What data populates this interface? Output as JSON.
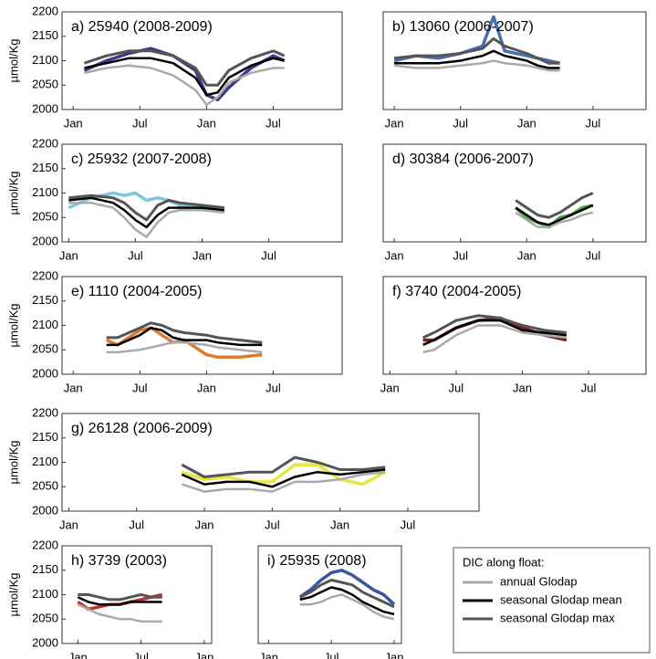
{
  "chart_data": [
    {
      "type": "line",
      "title": "a) 25940 (2008-2009)",
      "ylabel": "µmol/Kg",
      "x": [
        1,
        3,
        5,
        7,
        9,
        11,
        12,
        13,
        14,
        16,
        18,
        19
      ],
      "series": [
        {
          "color": "#3b3b8a",
          "values": [
            2080,
            2100,
            2115,
            2125,
            2110,
            2080,
            2030,
            2020,
            2045,
            2085,
            2110,
            2100
          ]
        },
        {
          "color": "#aaaaaa",
          "values": [
            2075,
            2085,
            2090,
            2085,
            2070,
            2040,
            2010,
            2025,
            2055,
            2075,
            2085,
            2085
          ]
        },
        {
          "color": "#000000",
          "values": [
            2085,
            2095,
            2105,
            2105,
            2095,
            2065,
            2030,
            2035,
            2065,
            2090,
            2105,
            2100
          ]
        },
        {
          "color": "#555555",
          "values": [
            2095,
            2110,
            2120,
            2120,
            2110,
            2085,
            2050,
            2050,
            2080,
            2105,
            2120,
            2110
          ]
        }
      ],
      "xlim": [
        -1,
        24.2
      ],
      "xticks": [
        {
          "value": 0,
          "label": "Jan"
        },
        {
          "value": 6,
          "label": "Jul"
        },
        {
          "value": 12,
          "label": "Jan"
        },
        {
          "value": 18,
          "label": "Jul"
        }
      ],
      "ylim": [
        2000,
        2200
      ],
      "yticks": [
        2000,
        2050,
        2100,
        2150,
        2200
      ]
    },
    {
      "type": "line",
      "title": "b) 13060 (2006-2007)",
      "x": [
        0,
        2,
        4,
        6,
        8,
        9,
        10,
        12,
        13,
        14,
        15
      ],
      "series": [
        {
          "color": "#4a6fb0",
          "values": [
            2100,
            2110,
            2105,
            2115,
            2130,
            2190,
            2120,
            2110,
            2105,
            2100,
            2095
          ]
        },
        {
          "color": "#aaaaaa",
          "values": [
            2090,
            2085,
            2085,
            2090,
            2095,
            2100,
            2095,
            2090,
            2085,
            2080,
            2080
          ]
        },
        {
          "color": "#000000",
          "values": [
            2095,
            2095,
            2095,
            2100,
            2110,
            2120,
            2110,
            2100,
            2090,
            2085,
            2085
          ]
        },
        {
          "color": "#555555",
          "values": [
            2105,
            2110,
            2110,
            2115,
            2125,
            2145,
            2130,
            2115,
            2105,
            2095,
            2095
          ]
        }
      ],
      "xlim": [
        -1,
        22.8
      ],
      "xticks": [
        {
          "value": 0,
          "label": "Jan"
        },
        {
          "value": 6,
          "label": "Jul"
        },
        {
          "value": 12,
          "label": "Jan"
        },
        {
          "value": 18,
          "label": "Jul"
        }
      ],
      "ylim": [
        2000,
        2200
      ]
    },
    {
      "type": "line",
      "title": "c) 25932 (2007-2008)",
      "ylabel": "µmol/Kg",
      "x": [
        0,
        2,
        4,
        5,
        6,
        7,
        8,
        9,
        10,
        12,
        14
      ],
      "series": [
        {
          "color": "#7ec8d8",
          "values": [
            2070,
            2090,
            2100,
            2095,
            2100,
            2085,
            2090,
            2085,
            2075,
            2070,
            2065
          ]
        },
        {
          "color": "#aaaaaa",
          "values": [
            2080,
            2080,
            2070,
            2050,
            2025,
            2010,
            2040,
            2060,
            2065,
            2065,
            2060
          ]
        },
        {
          "color": "#000000",
          "values": [
            2085,
            2090,
            2080,
            2065,
            2045,
            2030,
            2055,
            2070,
            2070,
            2070,
            2065
          ]
        },
        {
          "color": "#555555",
          "values": [
            2090,
            2095,
            2090,
            2080,
            2060,
            2045,
            2075,
            2085,
            2080,
            2075,
            2070
          ]
        }
      ],
      "xlim": [
        -0.6,
        24.6
      ],
      "xticks": [
        {
          "value": 0,
          "label": "Jan"
        },
        {
          "value": 6,
          "label": "Jul"
        },
        {
          "value": 12,
          "label": "Jan"
        },
        {
          "value": 18,
          "label": "Jul"
        }
      ],
      "ylim": [
        2000,
        2200
      ],
      "yticks": [
        2000,
        2050,
        2100,
        2150,
        2200
      ]
    },
    {
      "type": "line",
      "title": "d) 30384 (2006-2007)",
      "x": [
        11,
        12,
        13,
        14,
        15,
        16,
        17,
        18
      ],
      "series": [
        {
          "color": "#4aa84a",
          "values": [
            2070,
            2050,
            2040,
            2030,
            2050,
            2055,
            2070,
            2075
          ]
        },
        {
          "color": "#aaaaaa",
          "values": [
            2060,
            2045,
            2030,
            2030,
            2040,
            2045,
            2055,
            2060
          ]
        },
        {
          "color": "#000000",
          "values": [
            2070,
            2055,
            2040,
            2035,
            2045,
            2055,
            2065,
            2075
          ]
        },
        {
          "color": "#555555",
          "values": [
            2085,
            2070,
            2055,
            2050,
            2060,
            2075,
            2090,
            2100
          ]
        }
      ],
      "xlim": [
        -1,
        22.8
      ],
      "xticks": [
        {
          "value": 0,
          "label": "Jan"
        },
        {
          "value": 6,
          "label": "Jul"
        },
        {
          "value": 12,
          "label": "Jan"
        },
        {
          "value": 18,
          "label": "Jul"
        }
      ],
      "ylim": [
        2000,
        2200
      ]
    },
    {
      "type": "line",
      "title": "e) 1110 (2004-2005)",
      "ylabel": "µmol/Kg",
      "x": [
        3,
        4,
        6,
        7,
        8,
        9,
        10,
        12,
        13,
        15,
        17
      ],
      "series": [
        {
          "color": "#e07a30",
          "values": [
            2070,
            2060,
            2090,
            2095,
            2080,
            2065,
            2070,
            2040,
            2035,
            2035,
            2040
          ]
        },
        {
          "color": "#aaaaaa",
          "values": [
            2045,
            2045,
            2050,
            2055,
            2060,
            2065,
            2065,
            2060,
            2055,
            2050,
            2045
          ]
        },
        {
          "color": "#000000",
          "values": [
            2060,
            2060,
            2080,
            2095,
            2090,
            2075,
            2070,
            2070,
            2065,
            2060,
            2060
          ]
        },
        {
          "color": "#555555",
          "values": [
            2075,
            2075,
            2095,
            2105,
            2100,
            2090,
            2085,
            2080,
            2075,
            2070,
            2065
          ]
        }
      ],
      "xlim": [
        -1,
        24.2
      ],
      "xticks": [
        {
          "value": 0,
          "label": "Jan"
        },
        {
          "value": 6,
          "label": "Jul"
        },
        {
          "value": 12,
          "label": "Jan"
        },
        {
          "value": 18,
          "label": "Jul"
        }
      ],
      "ylim": [
        2000,
        2200
      ],
      "yticks": [
        2000,
        2050,
        2100,
        2150,
        2200
      ]
    },
    {
      "type": "line",
      "title": "f) 3740 (2004-2005)",
      "x": [
        3,
        4,
        6,
        8,
        10,
        12,
        14,
        16
      ],
      "series": [
        {
          "color": "#7a2020",
          "values": [
            2070,
            2070,
            2095,
            2110,
            2115,
            2095,
            2080,
            2070
          ]
        },
        {
          "color": "#aaaaaa",
          "values": [
            2045,
            2050,
            2080,
            2100,
            2100,
            2085,
            2080,
            2075
          ]
        },
        {
          "color": "#000000",
          "values": [
            2060,
            2070,
            2095,
            2110,
            2110,
            2090,
            2085,
            2080
          ]
        },
        {
          "color": "#555555",
          "values": [
            2075,
            2085,
            2110,
            2120,
            2115,
            2100,
            2090,
            2085
          ]
        }
      ],
      "xlim": [
        -0.6,
        23.2
      ],
      "xticks": [
        {
          "value": 0,
          "label": "Jan"
        },
        {
          "value": 6,
          "label": "Jul"
        },
        {
          "value": 12,
          "label": "Jan"
        },
        {
          "value": 18,
          "label": "Jul"
        }
      ],
      "ylim": [
        2000,
        2200
      ]
    },
    {
      "type": "line",
      "title": "g) 26128 (2006-2009)",
      "ylabel": "µmol/Kg",
      "x": [
        10,
        12,
        14,
        16,
        18,
        20,
        22,
        24,
        26,
        28
      ],
      "series": [
        {
          "color": "#e6e640",
          "values": [
            2080,
            2065,
            2070,
            2060,
            2060,
            2095,
            2095,
            2065,
            2055,
            2080
          ]
        },
        {
          "color": "#aaaaaa",
          "values": [
            2055,
            2040,
            2045,
            2045,
            2040,
            2060,
            2060,
            2065,
            2075,
            2080
          ]
        },
        {
          "color": "#000000",
          "values": [
            2075,
            2055,
            2060,
            2060,
            2050,
            2070,
            2080,
            2075,
            2080,
            2085
          ]
        },
        {
          "color": "#555555",
          "values": [
            2095,
            2070,
            2075,
            2080,
            2080,
            2110,
            2100,
            2085,
            2085,
            2090
          ]
        }
      ],
      "xlim": [
        -0.6,
        36.3
      ],
      "xticks": [
        {
          "value": 0,
          "label": "Jan"
        },
        {
          "value": 6,
          "label": "Jul"
        },
        {
          "value": 12,
          "label": "Jan"
        },
        {
          "value": 18,
          "label": "Jul"
        },
        {
          "value": 24,
          "label": "Jan"
        },
        {
          "value": 30,
          "label": "Jul"
        }
      ],
      "ylim": [
        2000,
        2200
      ],
      "yticks": [
        2000,
        2050,
        2100,
        2150,
        2200
      ]
    },
    {
      "type": "line",
      "title": "h) 3739 (2003)",
      "ylabel": "µmol/Kg",
      "x": [
        0,
        1,
        2,
        3,
        4,
        5,
        6,
        7,
        8
      ],
      "series": [
        {
          "color": "#c03030",
          "values": [
            2085,
            2070,
            2075,
            2080,
            2080,
            2085,
            2090,
            2095,
            2100
          ]
        },
        {
          "color": "#aaaaaa",
          "values": [
            2080,
            2070,
            2060,
            2055,
            2050,
            2050,
            2045,
            2045,
            2045
          ]
        },
        {
          "color": "#000000",
          "values": [
            2095,
            2085,
            2080,
            2080,
            2080,
            2085,
            2085,
            2085,
            2085
          ]
        },
        {
          "color": "#555555",
          "values": [
            2100,
            2100,
            2095,
            2090,
            2090,
            2095,
            2100,
            2095,
            2095
          ]
        }
      ],
      "xlim": [
        -1.5,
        12.7
      ],
      "xticks": [
        {
          "value": 0,
          "label": "Jan"
        },
        {
          "value": 6,
          "label": "Jul"
        },
        {
          "value": 12,
          "label": "Jan"
        }
      ],
      "ylim": [
        2000,
        2200
      ],
      "yticks": [
        2000,
        2050,
        2100,
        2150,
        2200
      ]
    },
    {
      "type": "line",
      "title": "i) 25935 (2008)",
      "x": [
        3,
        4,
        5,
        6,
        7,
        8,
        9,
        10,
        11,
        12
      ],
      "series": [
        {
          "color": "#3b55a0",
          "values": [
            2095,
            2110,
            2130,
            2145,
            2150,
            2140,
            2125,
            2110,
            2100,
            2080
          ]
        },
        {
          "color": "#aaaaaa",
          "values": [
            2080,
            2080,
            2085,
            2095,
            2100,
            2090,
            2080,
            2065,
            2055,
            2050
          ]
        },
        {
          "color": "#000000",
          "values": [
            2090,
            2095,
            2105,
            2115,
            2110,
            2100,
            2085,
            2075,
            2065,
            2060
          ]
        },
        {
          "color": "#555555",
          "values": [
            2095,
            2105,
            2120,
            2130,
            2125,
            2120,
            2105,
            2095,
            2085,
            2075
          ]
        }
      ],
      "xlim": [
        -1,
        12.7
      ],
      "xticks": [
        {
          "value": 0,
          "label": "Jan"
        },
        {
          "value": 6,
          "label": "Jul"
        },
        {
          "value": 12,
          "label": "Jan"
        }
      ],
      "ylim": [
        2000,
        2200
      ]
    }
  ],
  "legend": {
    "title": "DIC along float:",
    "entries": [
      {
        "name": "annual Glodap",
        "color": "#aaaaaa"
      },
      {
        "name": "seasonal Glodap mean",
        "color": "#000000"
      },
      {
        "name": "seasonal Glodap max",
        "color": "#555555"
      }
    ]
  }
}
